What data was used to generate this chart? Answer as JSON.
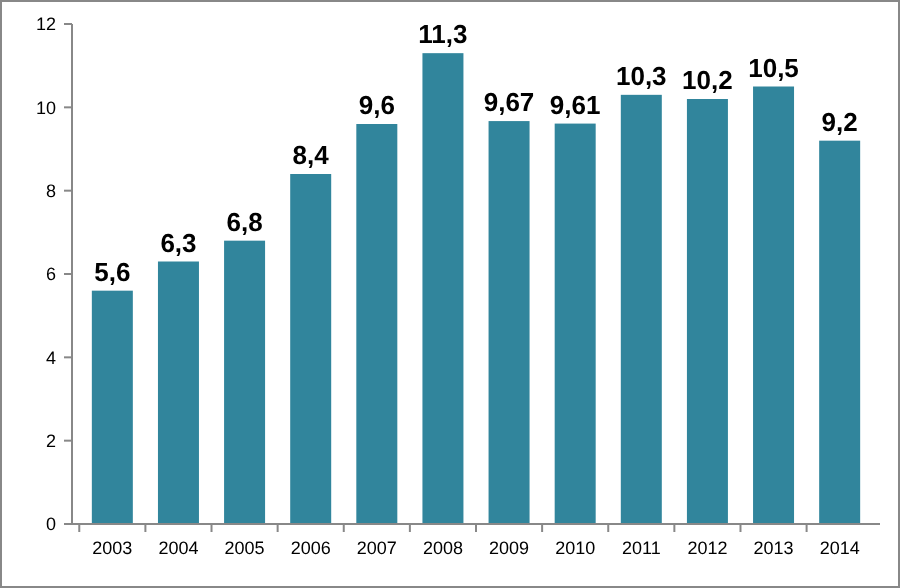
{
  "chart_data": {
    "type": "bar",
    "categories": [
      "2003",
      "2004",
      "2005",
      "2006",
      "2007",
      "2008",
      "2009",
      "2010",
      "2011",
      "2012",
      "2013",
      "2014"
    ],
    "values": [
      5.6,
      6.3,
      6.8,
      8.4,
      9.6,
      11.3,
      9.67,
      9.61,
      10.3,
      10.2,
      10.5,
      9.2
    ],
    "value_labels": [
      "5,6",
      "6,3",
      "6,8",
      "8,4",
      "9,6",
      "11,3",
      "9,67",
      "9,61",
      "10,3",
      "10,2",
      "10,5",
      "9,2"
    ],
    "color": "#31859c",
    "ylim": [
      0,
      12
    ],
    "yticks": [
      0,
      2,
      4,
      6,
      8,
      10,
      12
    ],
    "grid": false
  }
}
